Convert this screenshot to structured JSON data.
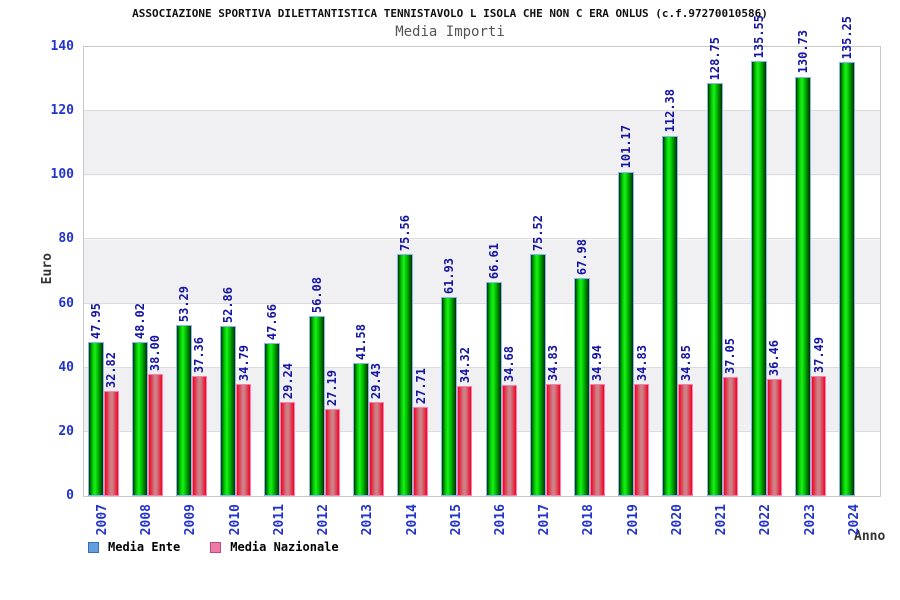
{
  "chart_data": {
    "type": "bar",
    "title": "ASSOCIAZIONE SPORTIVA DILETTANTISTICA TENNISTAVOLO L ISOLA CHE NON C ERA ONLUS (c.f.97270010586)",
    "subtitle": "Media Importi",
    "xlabel": "Anno",
    "ylabel": "Euro",
    "ylim": [
      0,
      140
    ],
    "yticks": [
      0,
      20,
      40,
      60,
      80,
      100,
      120,
      140
    ],
    "grid": "alternating horizontal bands every 20 units, light gridlines",
    "legend_position": "bottom-left",
    "categories": [
      "2007",
      "2008",
      "2009",
      "2010",
      "2011",
      "2012",
      "2013",
      "2014",
      "2015",
      "2016",
      "2017",
      "2018",
      "2019",
      "2020",
      "2021",
      "2022",
      "2023",
      "2024"
    ],
    "series": [
      {
        "name": "Media Ente",
        "values": [
          47.95,
          48.02,
          53.29,
          52.86,
          47.66,
          56.08,
          41.58,
          75.56,
          61.93,
          66.61,
          75.52,
          67.98,
          101.17,
          112.38,
          128.75,
          135.55,
          130.73,
          135.25
        ],
        "labels": [
          "47.95",
          "48.02",
          "53.29",
          "52.86",
          "47.66",
          "56.08",
          "41.58",
          "75.56",
          "61.93",
          "66.61",
          "75.52",
          "67.98",
          "101.17",
          "112.38",
          "128.75",
          "135.55",
          "130.73",
          "135.25"
        ]
      },
      {
        "name": "Media Nazionale",
        "values": [
          32.82,
          38.0,
          37.36,
          34.79,
          29.24,
          27.19,
          29.43,
          27.71,
          34.32,
          34.68,
          34.83,
          34.94,
          34.83,
          34.85,
          37.05,
          36.46,
          37.49,
          null
        ],
        "labels": [
          "32.82",
          "38.00",
          "37.36",
          "34.79",
          "29.24",
          "27.19",
          "29.43",
          "27.71",
          "34.32",
          "34.68",
          "34.83",
          "34.94",
          "34.83",
          "34.85",
          "37.05",
          "36.46",
          "37.49",
          null
        ]
      }
    ],
    "colors": {
      "band": "#f0f0f3",
      "gridline": "#dcdce0",
      "plot_border": "#c9c9c9",
      "axis_tick_label": "#2233cc",
      "value_label": "#1515a3",
      "title": "#111111",
      "subtitle": "#555555",
      "axis_title": "#333333",
      "green_edge": "#003200",
      "green_mid": "#00bf00",
      "green_bright": "#19f219",
      "green_border": "#8ab4f8",
      "red_edge": "#ee0422",
      "red_mid": "#cd8187",
      "red_border": "#ff7fb2"
    }
  },
  "legend": {
    "items": [
      {
        "label": "Media Ente",
        "swatch": "#619fe0",
        "swatch_border": "#3a6fb0"
      },
      {
        "label": "Media Nazionale",
        "swatch": "#ee7ba7",
        "swatch_border": "#c04a7a"
      }
    ]
  }
}
